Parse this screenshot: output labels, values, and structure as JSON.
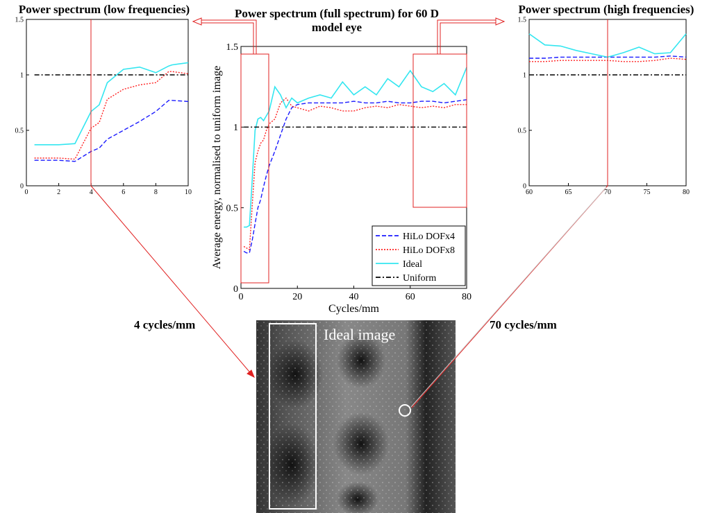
{
  "chart_data": [
    {
      "type": "line",
      "title": "Power spectrum (low frequencies)",
      "x": [
        0.5,
        1,
        2,
        3,
        4,
        4.5,
        5,
        6,
        7,
        8,
        8.8,
        9,
        10
      ],
      "series": [
        {
          "color": "#1a1aff",
          "style": "dashed",
          "values": [
            0.23,
            0.23,
            0.23,
            0.22,
            0.31,
            0.34,
            0.42,
            0.5,
            0.58,
            0.67,
            0.77,
            0.77,
            0.76
          ]
        },
        {
          "color": "#ff2020",
          "style": "dotted",
          "values": [
            0.25,
            0.25,
            0.25,
            0.24,
            0.52,
            0.57,
            0.78,
            0.87,
            0.91,
            0.93,
            1.03,
            1.03,
            1.01
          ]
        },
        {
          "color": "#33e6f0",
          "style": "solid",
          "values": [
            0.37,
            0.37,
            0.37,
            0.38,
            0.67,
            0.73,
            0.93,
            1.05,
            1.07,
            1.02,
            1.08,
            1.09,
            1.11
          ]
        },
        {
          "color": "#000000",
          "style": "dashdot",
          "values": [
            1,
            1,
            1,
            1,
            1,
            1,
            1,
            1,
            1,
            1,
            1,
            1,
            1
          ]
        }
      ],
      "xlim": [
        0,
        10
      ],
      "ylim": [
        0,
        1.5
      ],
      "xticks": [
        0,
        2,
        4,
        6,
        8,
        10
      ],
      "yticks": [
        0,
        0.5,
        1,
        1.5
      ]
    },
    {
      "type": "line",
      "title": "Power spectrum (full spectrum) for 60 D model eye",
      "x_label": "Cycles/mm",
      "y_label": "Average energy, normalised to uniform image",
      "x": [
        1,
        2,
        3,
        4,
        5,
        6,
        7,
        8,
        9,
        10,
        12,
        14,
        16,
        18,
        20,
        24,
        28,
        32,
        36,
        40,
        44,
        48,
        52,
        56,
        60,
        64,
        68,
        72,
        76,
        80
      ],
      "series": [
        {
          "name": "HiLo DOFx4",
          "color": "#1a1aff",
          "style": "dashed",
          "values": [
            0.23,
            0.22,
            0.22,
            0.3,
            0.4,
            0.5,
            0.55,
            0.63,
            0.7,
            0.76,
            0.85,
            0.95,
            1.05,
            1.12,
            1.14,
            1.15,
            1.15,
            1.15,
            1.15,
            1.16,
            1.15,
            1.15,
            1.16,
            1.15,
            1.15,
            1.16,
            1.16,
            1.15,
            1.16,
            1.17
          ]
        },
        {
          "name": "HiLo DOFx8",
          "color": "#ff2020",
          "style": "dotted",
          "values": [
            0.26,
            0.25,
            0.24,
            0.52,
            0.78,
            0.85,
            0.9,
            0.92,
            0.98,
            1.02,
            1.05,
            1.15,
            1.18,
            1.13,
            1.12,
            1.1,
            1.13,
            1.12,
            1.1,
            1.1,
            1.12,
            1.13,
            1.12,
            1.14,
            1.13,
            1.12,
            1.13,
            1.12,
            1.14,
            1.14
          ]
        },
        {
          "name": "Ideal",
          "color": "#33e6f0",
          "style": "solid",
          "values": [
            0.38,
            0.38,
            0.39,
            0.68,
            0.98,
            1.05,
            1.06,
            1.04,
            1.07,
            1.1,
            1.25,
            1.2,
            1.12,
            1.18,
            1.15,
            1.18,
            1.2,
            1.18,
            1.28,
            1.2,
            1.25,
            1.2,
            1.3,
            1.25,
            1.35,
            1.25,
            1.22,
            1.27,
            1.2,
            1.37
          ]
        },
        {
          "name": "Uniform",
          "color": "#000000",
          "style": "dashdot",
          "values": [
            1,
            1,
            1,
            1,
            1,
            1,
            1,
            1,
            1,
            1,
            1,
            1,
            1,
            1,
            1,
            1,
            1,
            1,
            1,
            1,
            1,
            1,
            1,
            1,
            1,
            1,
            1,
            1,
            1,
            1
          ]
        }
      ],
      "xlim": [
        0,
        80
      ],
      "ylim": [
        0,
        1.5
      ],
      "xticks": [
        0,
        20,
        40,
        60,
        80
      ],
      "yticks": [
        0,
        0.5,
        1,
        1.5
      ],
      "legend": "lower right"
    },
    {
      "type": "line",
      "title": "Power spectrum (high frequencies)",
      "x": [
        60,
        62,
        64,
        66,
        68,
        70,
        72,
        74,
        76,
        78,
        80
      ],
      "series": [
        {
          "color": "#1a1aff",
          "style": "dashed",
          "values": [
            1.15,
            1.15,
            1.16,
            1.16,
            1.16,
            1.16,
            1.16,
            1.16,
            1.16,
            1.17,
            1.16
          ]
        },
        {
          "color": "#ff2020",
          "style": "dotted",
          "values": [
            1.12,
            1.12,
            1.13,
            1.13,
            1.13,
            1.13,
            1.12,
            1.12,
            1.13,
            1.15,
            1.14
          ]
        },
        {
          "color": "#33e6f0",
          "style": "solid",
          "values": [
            1.37,
            1.27,
            1.26,
            1.22,
            1.19,
            1.16,
            1.2,
            1.25,
            1.19,
            1.2,
            1.37
          ]
        },
        {
          "color": "#000000",
          "style": "dashdot",
          "values": [
            1,
            1,
            1,
            1,
            1,
            1,
            1,
            1,
            1,
            1,
            1
          ]
        }
      ],
      "xlim": [
        60,
        80
      ],
      "ylim": [
        0,
        1.5
      ],
      "xticks": [
        60,
        65,
        70,
        75,
        80
      ],
      "yticks": [
        0,
        0.5,
        1,
        1.5
      ]
    }
  ],
  "annotations": [
    "4 cycles/mm",
    "70 cycles/mm"
  ],
  "image": {
    "label": "Ideal image"
  }
}
